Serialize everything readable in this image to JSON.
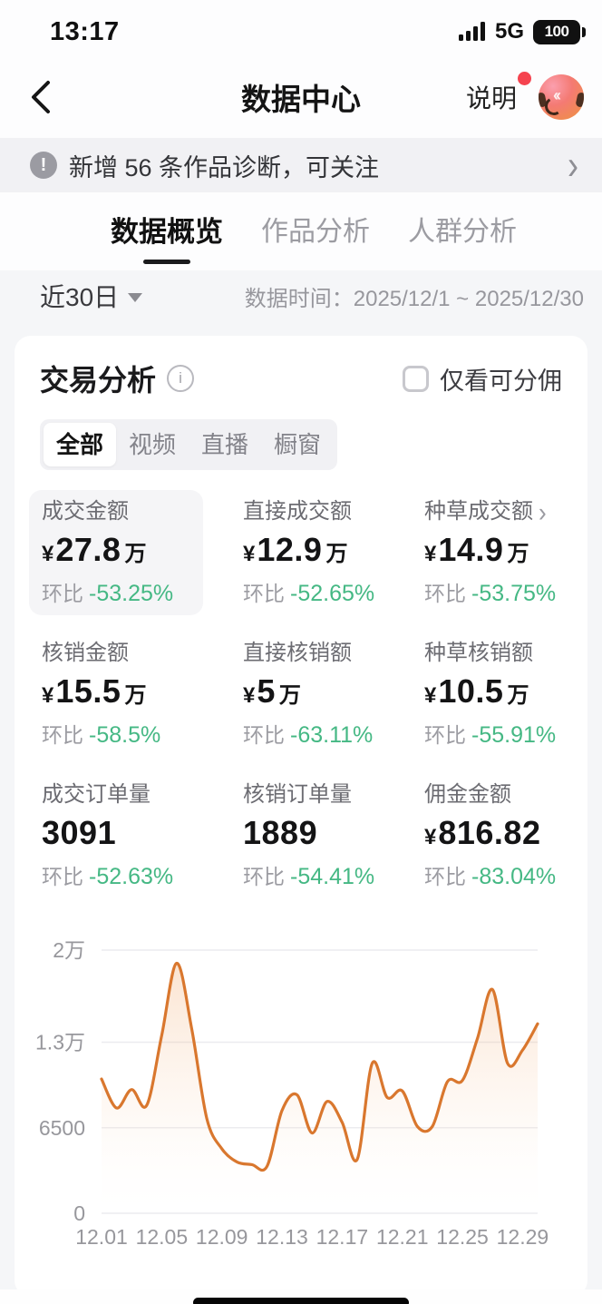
{
  "status_bar": {
    "time": "13:17",
    "network": "5G",
    "battery": "100"
  },
  "header": {
    "title": "数据中心",
    "help_label": "说明"
  },
  "banner": {
    "text": "新增 56 条作品诊断，可关注"
  },
  "tabs": [
    {
      "label": "数据概览",
      "active": true
    },
    {
      "label": "作品分析",
      "active": false
    },
    {
      "label": "人群分析",
      "active": false
    }
  ],
  "date_filter": {
    "range_label": "近30日",
    "time_label": "数据时间：2025/12/1 ~ 2025/12/30"
  },
  "card": {
    "title": "交易分析",
    "info_glyph": "i",
    "checkbox_label": "仅看可分佣",
    "segments": [
      "全部",
      "视频",
      "直播",
      "橱窗"
    ],
    "compare_label": "环比"
  },
  "metrics": [
    {
      "label": "成交金额",
      "prefix": "¥",
      "value": "27.8",
      "suffix": "万",
      "change": "-53.25%",
      "highlighted": true
    },
    {
      "label": "直接成交额",
      "prefix": "¥",
      "value": "12.9",
      "suffix": "万",
      "change": "-52.65%"
    },
    {
      "label": "种草成交额",
      "has_arrow": true,
      "prefix": "¥",
      "value": "14.9",
      "suffix": "万",
      "change": "-53.75%"
    },
    {
      "label": "核销金额",
      "prefix": "¥",
      "value": "15.5",
      "suffix": "万",
      "change": "-58.5%"
    },
    {
      "label": "直接核销额",
      "prefix": "¥",
      "value": "5",
      "suffix": "万",
      "change": "-63.11%"
    },
    {
      "label": "种草核销额",
      "prefix": "¥",
      "value": "10.5",
      "suffix": "万",
      "change": "-55.91%"
    },
    {
      "label": "成交订单量",
      "value": "3091",
      "change": "-52.63%"
    },
    {
      "label": "核销订单量",
      "value": "1889",
      "change": "-54.41%"
    },
    {
      "label": "佣金金额",
      "prefix": "¥",
      "value": "816.82",
      "change": "-83.04%"
    }
  ],
  "colors": {
    "accent_green": "#45b884",
    "chart_line": "#d9772e",
    "notification_red": "#f5434f"
  },
  "chart_data": {
    "type": "area",
    "x": [
      "12.01",
      "12.02",
      "12.03",
      "12.04",
      "12.05",
      "12.06",
      "12.07",
      "12.08",
      "12.09",
      "12.10",
      "12.11",
      "12.12",
      "12.13",
      "12.14",
      "12.15",
      "12.16",
      "12.17",
      "12.18",
      "12.19",
      "12.20",
      "12.21",
      "12.22",
      "12.23",
      "12.24",
      "12.25",
      "12.26",
      "12.27",
      "12.28",
      "12.29",
      "12.30"
    ],
    "values": [
      10200,
      8000,
      9400,
      8200,
      13500,
      19000,
      14000,
      7200,
      4900,
      3900,
      3700,
      3550,
      7800,
      9000,
      6100,
      8500,
      6900,
      4100,
      11400,
      8800,
      9300,
      6600,
      6600,
      10000,
      10100,
      13300,
      17000,
      11400,
      12400,
      14400
    ],
    "x_tick_labels": [
      "12.01",
      "12.05",
      "12.09",
      "12.13",
      "12.17",
      "12.21",
      "12.25",
      "12.29"
    ],
    "y_ticks": [
      {
        "label": "0",
        "value": 0
      },
      {
        "label": "6500",
        "value": 6500
      },
      {
        "label": "1.3万",
        "value": 13000
      },
      {
        "label": "2万",
        "value": 20000
      }
    ],
    "ylim": [
      0,
      20000
    ],
    "grid": true,
    "legend": false,
    "line_color": "#d9772e",
    "fill_from": "rgba(238,150,75,0.26)",
    "fill_to": "rgba(255,245,238,0)"
  }
}
